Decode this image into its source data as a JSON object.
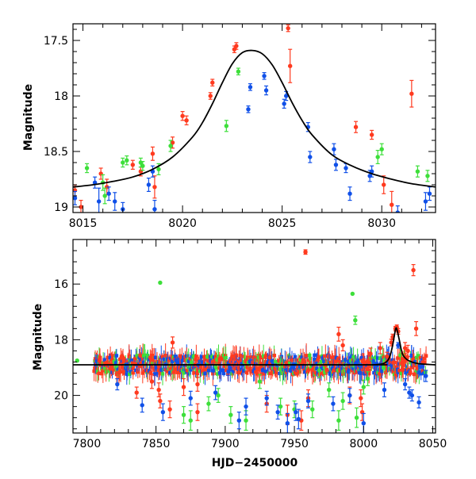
{
  "chart_data": [
    {
      "type": "scatter",
      "title": "",
      "xlabel": "",
      "ylabel": "Magnitude",
      "xlim": [
        8014.5,
        8032.7
      ],
      "ylim": [
        19.05,
        17.35
      ],
      "x_ticks": [
        8015,
        8020,
        8025,
        8030
      ],
      "x_tick_labels": [
        "8015",
        "8020",
        "8025",
        "8030"
      ],
      "y_ticks": [
        17.5,
        18,
        18.5,
        19
      ],
      "y_tick_labels": [
        "17.5",
        "18",
        "18.5",
        "19"
      ],
      "colors": {
        "red": "#ff3a1f",
        "green": "#3ddf3a",
        "blue": "#1050e8",
        "model": "#000000"
      },
      "model_curve": {
        "name": "",
        "x": [
          8014.5,
          8015.5,
          8016.5,
          8017.5,
          8018.5,
          8019.5,
          8020.5,
          8021.0,
          8021.5,
          8022.0,
          8022.5,
          8023.0,
          8023.5,
          8024.0,
          8024.5,
          8025.0,
          8025.5,
          8026.0,
          8026.5,
          8027.5,
          8028.5,
          8029.5,
          8030.5,
          8031.5,
          8032.7
        ],
        "y": [
          18.82,
          18.8,
          18.77,
          18.73,
          18.66,
          18.55,
          18.37,
          18.24,
          18.07,
          17.88,
          17.71,
          17.61,
          17.59,
          17.62,
          17.72,
          17.88,
          18.06,
          18.22,
          18.35,
          18.53,
          18.63,
          18.7,
          18.75,
          18.79,
          18.82
        ]
      },
      "series": [
        {
          "name": "",
          "color": "red",
          "x": [
            8014.6,
            8014.9,
            8015.9,
            8016.2,
            8017.5,
            8017.9,
            8018.5,
            8018.6,
            8019.5,
            8020.0,
            8020.2,
            8021.4,
            8021.5,
            8022.6,
            8022.7,
            8025.3,
            8025.4,
            8028.7,
            8029.5,
            8030.1,
            8030.5,
            8031.5
          ],
          "y": [
            18.85,
            19.0,
            18.7,
            18.82,
            18.62,
            18.68,
            18.52,
            18.82,
            18.42,
            18.18,
            18.22,
            18.0,
            17.88,
            17.58,
            17.55,
            17.39,
            17.73,
            18.28,
            18.35,
            18.8,
            18.98,
            17.98
          ],
          "err": [
            0.05,
            0.06,
            0.05,
            0.07,
            0.04,
            0.04,
            0.06,
            0.1,
            0.05,
            0.04,
            0.04,
            0.03,
            0.03,
            0.03,
            0.03,
            0.03,
            0.15,
            0.05,
            0.04,
            0.08,
            0.12,
            0.12
          ]
        },
        {
          "name": "",
          "color": "green",
          "x": [
            8015.2,
            8016.0,
            8016.1,
            8017.0,
            8017.2,
            8017.9,
            8018.0,
            8018.8,
            8019.4,
            8022.2,
            8022.8,
            8029.8,
            8030.0,
            8031.8,
            8032.3
          ],
          "y": [
            18.65,
            18.78,
            18.9,
            18.6,
            18.58,
            18.6,
            18.63,
            18.66,
            18.45,
            18.27,
            17.78,
            18.55,
            18.48,
            18.68,
            18.72
          ],
          "err": [
            0.04,
            0.07,
            0.07,
            0.04,
            0.04,
            0.04,
            0.04,
            0.05,
            0.05,
            0.05,
            0.03,
            0.06,
            0.05,
            0.05,
            0.05
          ]
        },
        {
          "name": "",
          "color": "blue",
          "x": [
            8014.6,
            8015.6,
            8015.8,
            8016.3,
            8016.6,
            8017.0,
            8018.3,
            8018.5,
            8018.6,
            8023.3,
            8023.4,
            8024.1,
            8024.2,
            8025.1,
            8025.2,
            8026.3,
            8026.4,
            8027.6,
            8027.7,
            8028.2,
            8028.4,
            8029.4,
            8029.5,
            8030.8,
            8032.2,
            8032.4
          ],
          "y": [
            18.92,
            18.78,
            18.95,
            18.88,
            18.95,
            19.02,
            18.8,
            18.68,
            19.02,
            18.12,
            17.92,
            17.82,
            17.95,
            18.07,
            18.0,
            18.28,
            18.55,
            18.48,
            18.62,
            18.65,
            18.88,
            18.72,
            18.68,
            19.05,
            18.95,
            18.88
          ],
          "err": [
            0.06,
            0.05,
            0.12,
            0.06,
            0.08,
            0.06,
            0.06,
            0.05,
            0.08,
            0.03,
            0.03,
            0.03,
            0.04,
            0.04,
            0.04,
            0.04,
            0.05,
            0.05,
            0.05,
            0.04,
            0.06,
            0.05,
            0.05,
            0.06,
            0.08,
            0.06
          ]
        }
      ]
    },
    {
      "type": "scatter",
      "title": "",
      "xlabel": "HJD−2450000",
      "ylabel": "Magnitude",
      "xlim": [
        7790,
        8052
      ],
      "ylim": [
        21.35,
        14.4
      ],
      "x_ticks": [
        7800,
        7850,
        7900,
        7950,
        8000,
        8050
      ],
      "x_tick_labels": [
        "7800",
        "7850",
        "7900",
        "7950",
        "8000",
        "8050"
      ],
      "y_ticks": [
        16,
        18,
        20
      ],
      "y_tick_labels": [
        "16",
        "18",
        "20"
      ],
      "colors": {
        "red": "#ff3a1f",
        "green": "#3ddf3a",
        "blue": "#1050e8",
        "model": "#000000"
      },
      "model_curve": {
        "name": "",
        "x": [
          7790,
          8000,
          8005,
          8010,
          8014,
          8017,
          8019,
          8021,
          8023,
          8024,
          8026,
          8028,
          8031,
          8035,
          8040,
          8052
        ],
        "y": [
          18.9,
          18.9,
          18.9,
          18.89,
          18.86,
          18.77,
          18.6,
          18.2,
          17.65,
          17.62,
          18.05,
          18.5,
          18.7,
          18.8,
          18.86,
          18.9
        ]
      },
      "dense_band": {
        "x_start": 7805,
        "x_end": 8045,
        "center": 18.9,
        "spread": 0.35
      },
      "series": [
        {
          "name": "",
          "color": "red",
          "x": [
            7958,
            7853,
            7860,
            7836,
            7960,
            7982,
            7985,
            7998,
            8005,
            8012,
            8017,
            8020,
            8021,
            8023,
            8024,
            8025,
            8030,
            8032,
            8036,
            8038,
            7847,
            7870,
            7880,
            7930,
            7945,
            7955,
            7990,
            7999,
            7852,
            7880,
            7862
          ],
          "y": [
            14.85,
            20.2,
            20.5,
            19.9,
            20.1,
            17.8,
            18.2,
            20.1,
            18.5,
            18.3,
            18.6,
            18.1,
            17.9,
            17.6,
            17.55,
            17.7,
            18.3,
            18.4,
            15.5,
            17.6,
            19.5,
            19.7,
            20.6,
            20.3,
            20.7,
            20.9,
            20.0,
            20.6,
            19.8,
            19.6,
            18.1
          ],
          "err": [
            0.08,
            0.25,
            0.3,
            0.2,
            0.3,
            0.25,
            0.2,
            0.3,
            0.2,
            0.2,
            0.15,
            0.12,
            0.1,
            0.08,
            0.08,
            0.1,
            0.2,
            0.2,
            0.2,
            0.25,
            0.25,
            0.3,
            0.3,
            0.3,
            0.35,
            0.35,
            0.3,
            0.3,
            0.25,
            0.25,
            0.2
          ]
        },
        {
          "name": "",
          "color": "green",
          "x": [
            7793,
            7853,
            7870,
            7888,
            7904,
            7915,
            7950,
            7968,
            7985,
            7992,
            7994,
            8000,
            7875,
            7895,
            7925,
            7940,
            7963,
            7975,
            7982,
            7995,
            8003
          ],
          "y": [
            18.75,
            15.95,
            20.7,
            20.3,
            20.7,
            20.9,
            20.5,
            19.1,
            20.2,
            16.35,
            17.3,
            19.7,
            20.9,
            20.0,
            19.5,
            20.4,
            20.5,
            19.8,
            20.9,
            20.8,
            19.4
          ],
          "err": [
            0.05,
            0.06,
            0.3,
            0.25,
            0.3,
            0.35,
            0.3,
            0.25,
            0.3,
            0.08,
            0.15,
            0.25,
            0.35,
            0.25,
            0.25,
            0.3,
            0.3,
            0.25,
            0.35,
            0.35,
            0.25
          ],
          "show_err": [
            false,
            false,
            true,
            true,
            true,
            true,
            true,
            true,
            true,
            false,
            true,
            true,
            true,
            true,
            true,
            true,
            true,
            true,
            true,
            true,
            true
          ]
        },
        {
          "name": "",
          "color": "blue",
          "x": [
            7822,
            7840,
            7855,
            7875,
            7893,
            7915,
            7930,
            7945,
            7951,
            7953,
            7960,
            7978,
            7990,
            8000,
            8015,
            8025,
            8030,
            8035,
            8040,
            8045,
            8033,
            7910,
            7938
          ],
          "y": [
            19.6,
            20.35,
            20.6,
            20.1,
            19.9,
            20.4,
            20.1,
            21.0,
            20.6,
            20.85,
            20.2,
            20.3,
            20.0,
            21.0,
            19.8,
            18.2,
            19.6,
            20.0,
            20.25,
            19.3,
            19.9,
            20.9,
            20.6
          ],
          "err": [
            0.2,
            0.25,
            0.3,
            0.25,
            0.25,
            0.3,
            0.25,
            0.35,
            0.3,
            0.35,
            0.25,
            0.25,
            0.25,
            0.35,
            0.25,
            0.1,
            0.2,
            0.2,
            0.2,
            0.2,
            0.2,
            0.3,
            0.25
          ]
        }
      ]
    }
  ]
}
